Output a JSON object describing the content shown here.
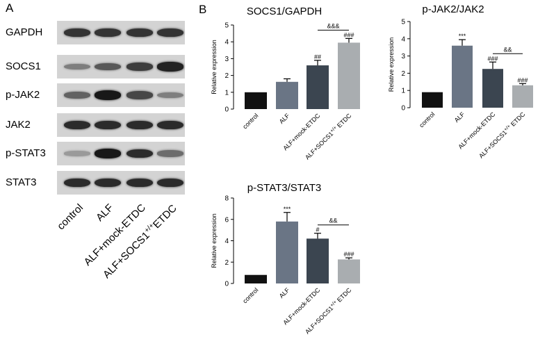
{
  "panels": {
    "a": "A",
    "b": "B"
  },
  "western_blot": {
    "rows": [
      {
        "label": "GAPDH",
        "intensities": [
          0.8,
          0.8,
          0.8,
          0.8
        ]
      },
      {
        "label": "SOCS1",
        "intensities": [
          0.4,
          0.6,
          0.75,
          0.9
        ]
      },
      {
        "label": "p-JAK2",
        "intensities": [
          0.55,
          0.95,
          0.7,
          0.4
        ]
      },
      {
        "label": "JAK2",
        "intensities": [
          0.85,
          0.85,
          0.85,
          0.85
        ]
      },
      {
        "label": "p-STAT3",
        "intensities": [
          0.25,
          0.95,
          0.85,
          0.5
        ]
      },
      {
        "label": "STAT3",
        "intensities": [
          0.85,
          0.85,
          0.85,
          0.85
        ]
      }
    ],
    "lanes": [
      "control",
      "ALF",
      "ALF+mock-ETDC",
      "ALF+SOCS1+/+ETDC"
    ]
  },
  "chart_data": [
    {
      "type": "bar",
      "title": "SOCS1/GAPDH",
      "ylabel": "Relative expression",
      "ylim": [
        0,
        5
      ],
      "yticks": [
        0,
        1,
        2,
        3,
        4,
        5
      ],
      "categories": [
        "control",
        "ALF",
        "ALF+mock-ETDC",
        "ALF+SOCS1+/+ ETDC"
      ],
      "values": [
        1.0,
        1.62,
        2.6,
        3.95
      ],
      "errors": [
        0,
        0.18,
        0.3,
        0.25
      ],
      "colors": [
        "#111111",
        "#6a7585",
        "#3b4550",
        "#a9adb0"
      ],
      "annotations": [
        "",
        "",
        "##",
        "###"
      ],
      "bracket": {
        "from": 2,
        "to": 3,
        "label": "&&&"
      }
    },
    {
      "type": "bar",
      "title": "p-JAK2/JAK2",
      "ylabel": "Relative expression",
      "ylim": [
        0,
        5
      ],
      "yticks": [
        0,
        1,
        2,
        3,
        4,
        5
      ],
      "categories": [
        "control",
        "ALF",
        "ALF+mock-ETDC",
        "ALF+SOCS1+/+ ETDC"
      ],
      "values": [
        0.9,
        3.6,
        2.25,
        1.3
      ],
      "errors": [
        0,
        0.35,
        0.4,
        0.1
      ],
      "colors": [
        "#111111",
        "#6a7585",
        "#3b4550",
        "#a9adb0"
      ],
      "annotations": [
        "",
        "***",
        "###",
        "###"
      ],
      "bracket": {
        "from": 2,
        "to": 3,
        "label": "&&"
      }
    },
    {
      "type": "bar",
      "title": "p-STAT3/STAT3",
      "ylabel": "Relative expression",
      "ylim": [
        0,
        8
      ],
      "yticks": [
        0,
        2,
        4,
        6,
        8
      ],
      "categories": [
        "control",
        "ALF",
        "ALF+mock-ETDC",
        "ALF+SOCS1+/+ ETDC"
      ],
      "values": [
        0.8,
        5.8,
        4.2,
        2.25
      ],
      "errors": [
        0,
        0.85,
        0.5,
        0.15
      ],
      "colors": [
        "#111111",
        "#6a7585",
        "#3b4550",
        "#a9adb0"
      ],
      "annotations": [
        "",
        "***",
        "#",
        "###"
      ],
      "bracket": {
        "from": 2,
        "to": 3,
        "label": "&&"
      }
    }
  ]
}
